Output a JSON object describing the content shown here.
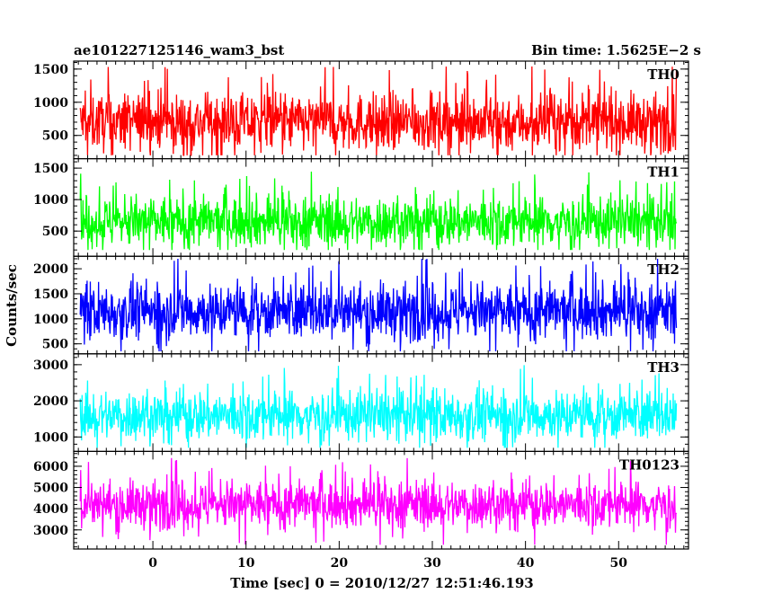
{
  "header": {
    "left_title": "ae101227125146_wam3_bst",
    "right_title": "Bin time: 1.5625E−2 s"
  },
  "chart_data": {
    "type": "line",
    "title": "ae101227125146_wam3_bst",
    "subtitle": "Bin time: 1.5625E−2 s",
    "xlabel": "Time [sec] 0 = 2010/12/27 12:51:46.193",
    "ylabel": "Counts/sec",
    "xlim": [
      -8.5,
      57.5
    ],
    "data_xrange": [
      -7.8,
      56.2
    ],
    "xticks_major": [
      0,
      10,
      20,
      30,
      40,
      50
    ],
    "xtick_labels": [
      "0",
      "10",
      "20",
      "30",
      "40",
      "50"
    ],
    "grid": false,
    "panels": [
      {
        "name": "TH0",
        "color": "#ff0000",
        "ylim": [
          150,
          1620
        ],
        "yticks": [
          500,
          1000,
          1500
        ],
        "ytick_labels": [
          "500",
          "1000",
          "1500"
        ],
        "mean": 700,
        "spread": 420,
        "min": 200,
        "max": 1600
      },
      {
        "name": "TH1",
        "color": "#00ff00",
        "ylim": [
          100,
          1650
        ],
        "yticks": [
          500,
          1000,
          1500
        ],
        "ytick_labels": [
          "500",
          "1000",
          "1500"
        ],
        "mean": 650,
        "spread": 400,
        "min": 200,
        "max": 1650
      },
      {
        "name": "TH2",
        "color": "#0000ff",
        "ylim": [
          300,
          2250
        ],
        "yticks": [
          500,
          1000,
          1500,
          2000
        ],
        "ytick_labels": [
          "500",
          "1000",
          "1500",
          "2000"
        ],
        "mean": 1150,
        "spread": 550,
        "min": 350,
        "max": 2200
      },
      {
        "name": "TH3",
        "color": "#00ffff",
        "ylim": [
          600,
          3300
        ],
        "yticks": [
          1000,
          2000,
          3000
        ],
        "ytick_labels": [
          "1000",
          "2000",
          "3000"
        ],
        "mean": 1600,
        "spread": 700,
        "min": 700,
        "max": 3200
      },
      {
        "name": "TH0123",
        "color": "#ff00ff",
        "ylim": [
          2100,
          6700
        ],
        "yticks": [
          3000,
          4000,
          5000,
          6000
        ],
        "ytick_labels": [
          "3000",
          "4000",
          "5000",
          "6000"
        ],
        "mean": 4200,
        "spread": 1100,
        "min": 2300,
        "max": 6500
      }
    ]
  }
}
